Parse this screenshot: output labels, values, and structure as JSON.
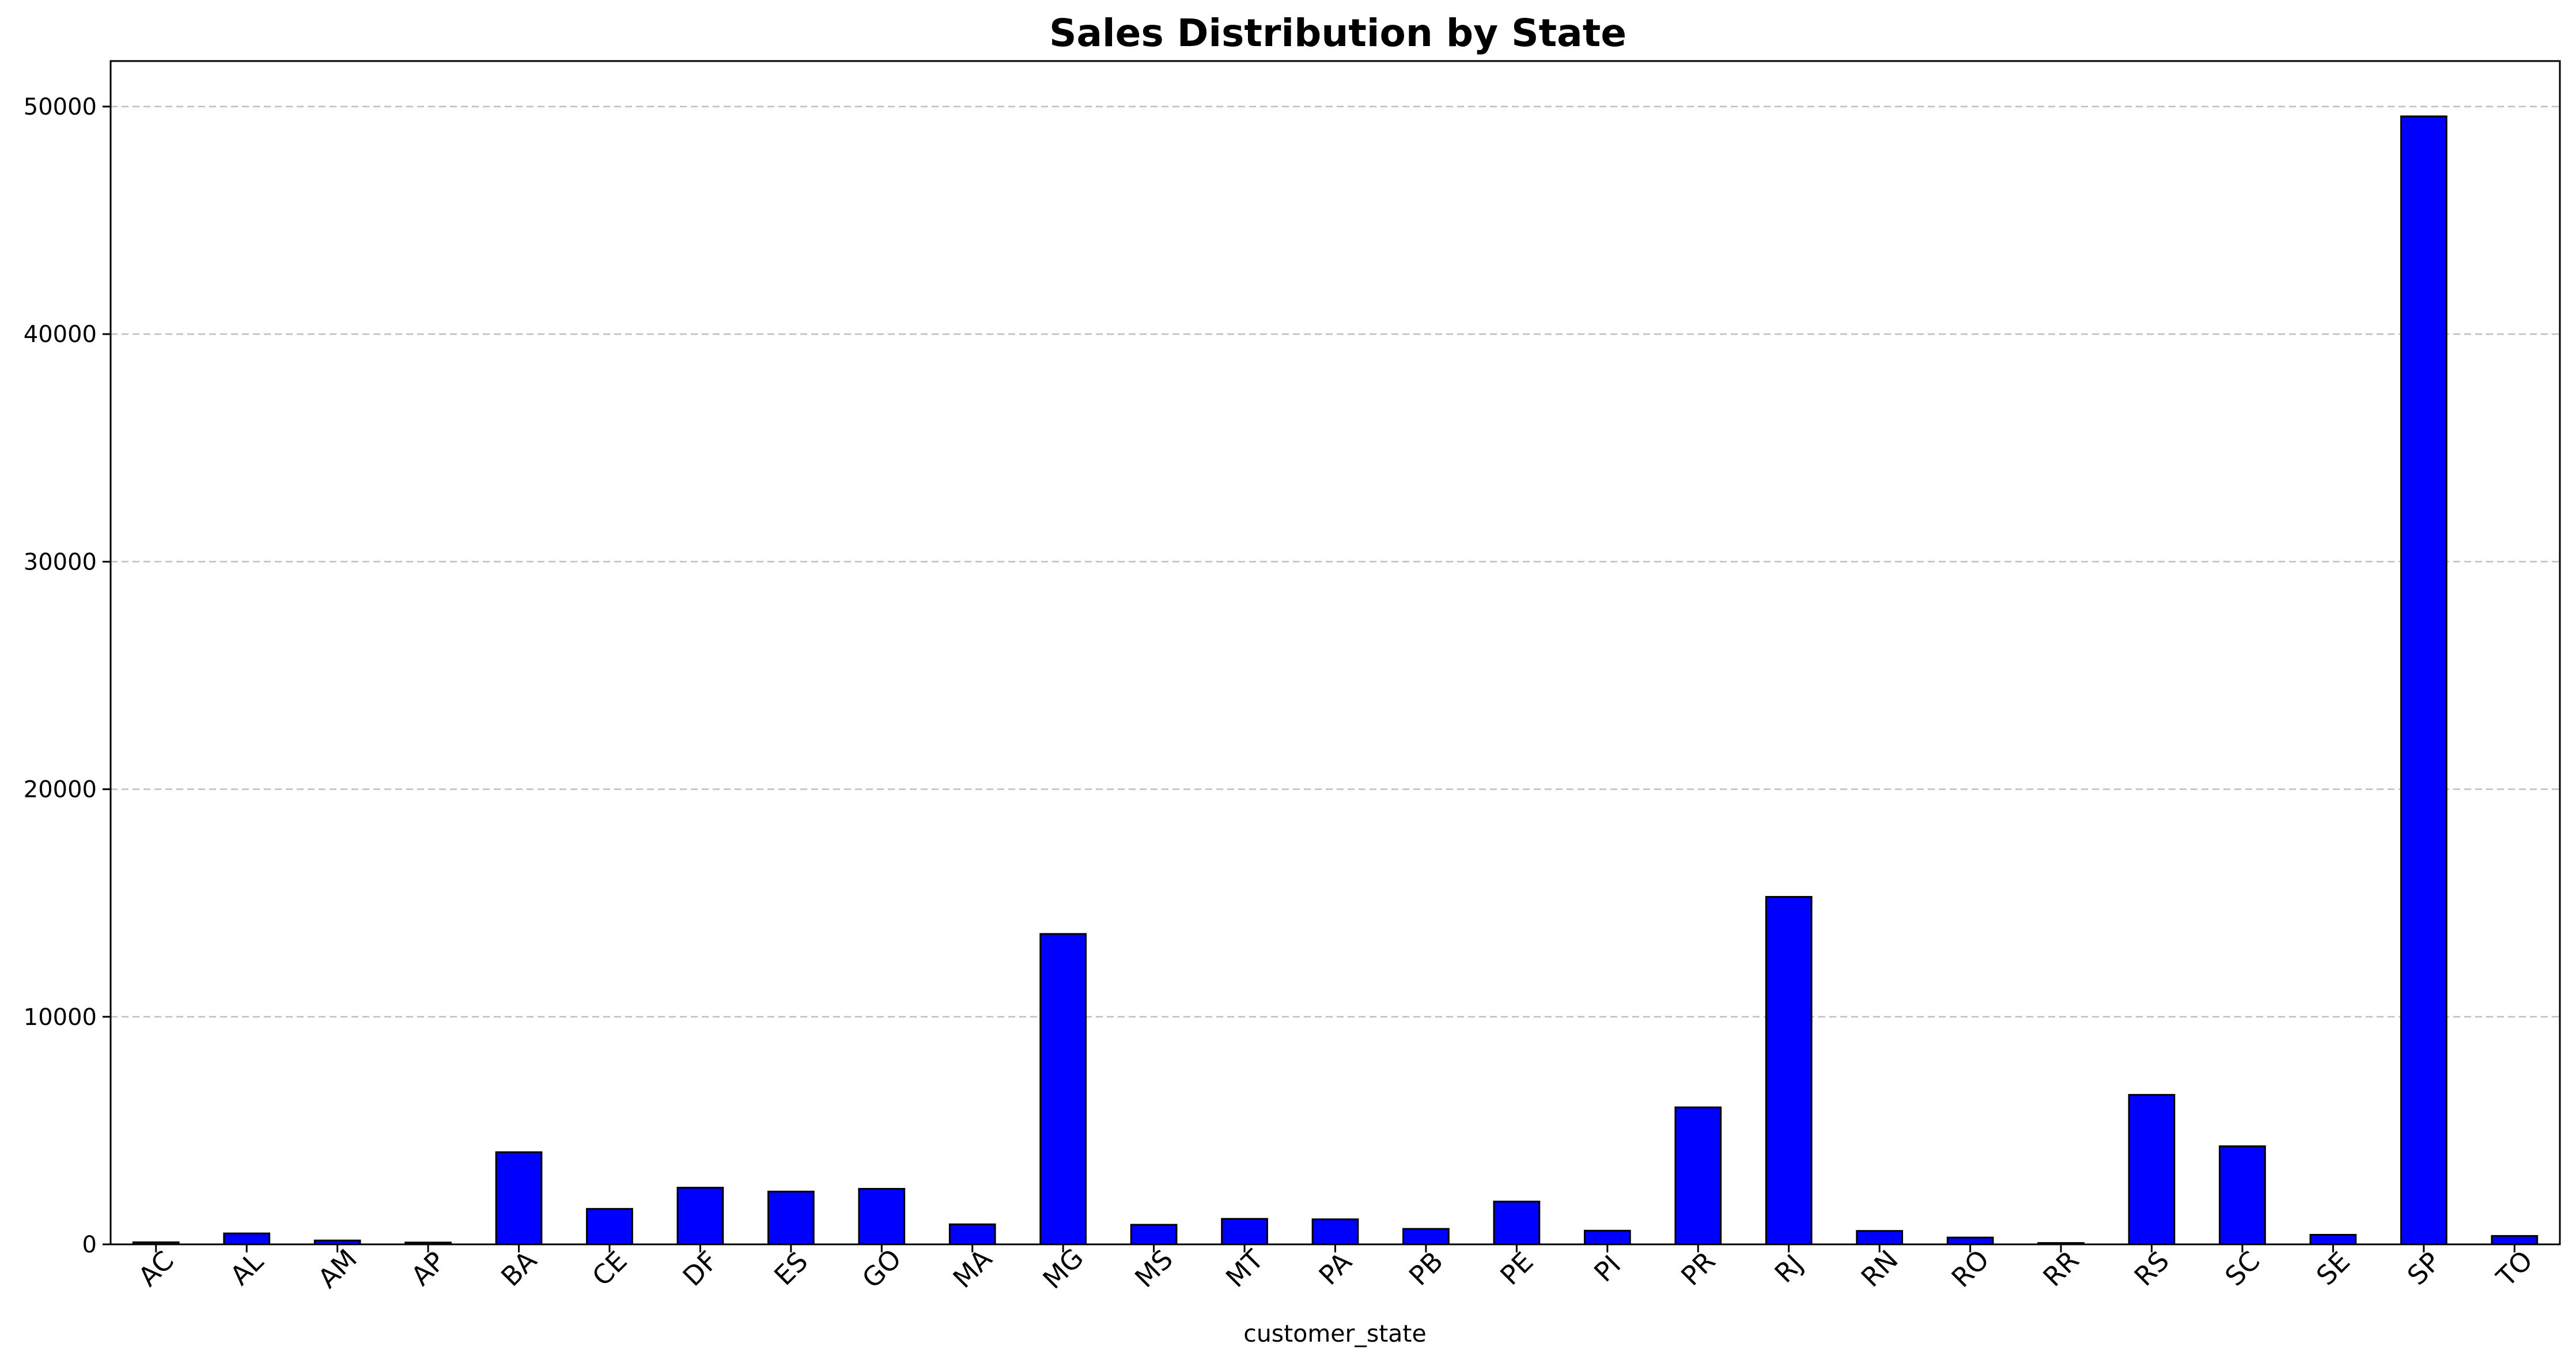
{
  "chart_data": {
    "type": "bar",
    "title": "Sales Distribution by State",
    "xlabel": "customer_state",
    "ylabel": "",
    "categories": [
      "AC",
      "AL",
      "AM",
      "AP",
      "BA",
      "CE",
      "DF",
      "ES",
      "GO",
      "MA",
      "MG",
      "MS",
      "MT",
      "PA",
      "PB",
      "PE",
      "PI",
      "PR",
      "RJ",
      "RN",
      "RO",
      "RR",
      "RS",
      "SC",
      "SE",
      "SP",
      "TO"
    ],
    "values": [
      90,
      480,
      170,
      80,
      4050,
      1560,
      2490,
      2320,
      2440,
      880,
      13640,
      860,
      1120,
      1100,
      680,
      1880,
      600,
      6020,
      15270,
      590,
      300,
      60,
      6570,
      4310,
      420,
      49570,
      370
    ],
    "ylim": [
      0,
      52000
    ],
    "yticks": [
      0,
      10000,
      20000,
      30000,
      40000,
      50000
    ],
    "grid": "y-dashed",
    "legend": "none",
    "colors": {
      "bar_fill": "#0000ff",
      "bar_edge": "#000000",
      "grid": "#bfbfbf"
    }
  }
}
